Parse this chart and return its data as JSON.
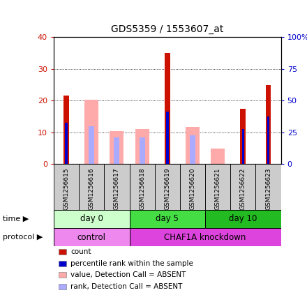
{
  "title": "GDS5359 / 1553607_at",
  "samples": [
    "GSM1256615",
    "GSM1256616",
    "GSM1256617",
    "GSM1256618",
    "GSM1256619",
    "GSM1256620",
    "GSM1256621",
    "GSM1256622",
    "GSM1256623"
  ],
  "count_values": [
    21.5,
    0,
    0,
    0,
    35,
    0,
    0,
    17.5,
    25
  ],
  "rank_values": [
    13,
    0,
    0,
    0,
    16.5,
    0,
    0,
    11,
    15
  ],
  "absent_value_values": [
    0,
    20.3,
    10.3,
    11,
    0,
    11.8,
    4.8,
    0,
    0
  ],
  "absent_rank_values": [
    0,
    12,
    8.5,
    8.5,
    0,
    9,
    0,
    0,
    0
  ],
  "ylim": [
    0,
    40
  ],
  "y2lim": [
    0,
    100
  ],
  "yticks": [
    0,
    10,
    20,
    30,
    40
  ],
  "y2ticks": [
    0,
    25,
    50,
    75,
    100
  ],
  "color_count": "#cc1100",
  "color_rank": "#0000cc",
  "color_absent_value": "#ffaaaa",
  "color_absent_rank": "#aaaaff",
  "time_groups": [
    {
      "label": "day 0",
      "start": 0,
      "end": 3,
      "color": "#ccffcc"
    },
    {
      "label": "day 5",
      "start": 3,
      "end": 6,
      "color": "#44dd44"
    },
    {
      "label": "day 10",
      "start": 6,
      "end": 9,
      "color": "#22bb22"
    }
  ],
  "protocol_groups": [
    {
      "label": "control",
      "start": 0,
      "end": 3,
      "color": "#ee88ee"
    },
    {
      "label": "CHAF1A knockdown",
      "start": 3,
      "end": 9,
      "color": "#dd44dd"
    }
  ],
  "bg_color": "#ffffff",
  "plot_bg": "#ffffff",
  "tick_label_color_left": "#cc1100",
  "tick_label_color_right": "#0000cc",
  "sample_bg": "#cccccc",
  "legend_items": [
    {
      "label": "count",
      "color": "#cc1100"
    },
    {
      "label": "percentile rank within the sample",
      "color": "#0000cc"
    },
    {
      "label": "value, Detection Call = ABSENT",
      "color": "#ffaaaa"
    },
    {
      "label": "rank, Detection Call = ABSENT",
      "color": "#aaaaff"
    }
  ]
}
